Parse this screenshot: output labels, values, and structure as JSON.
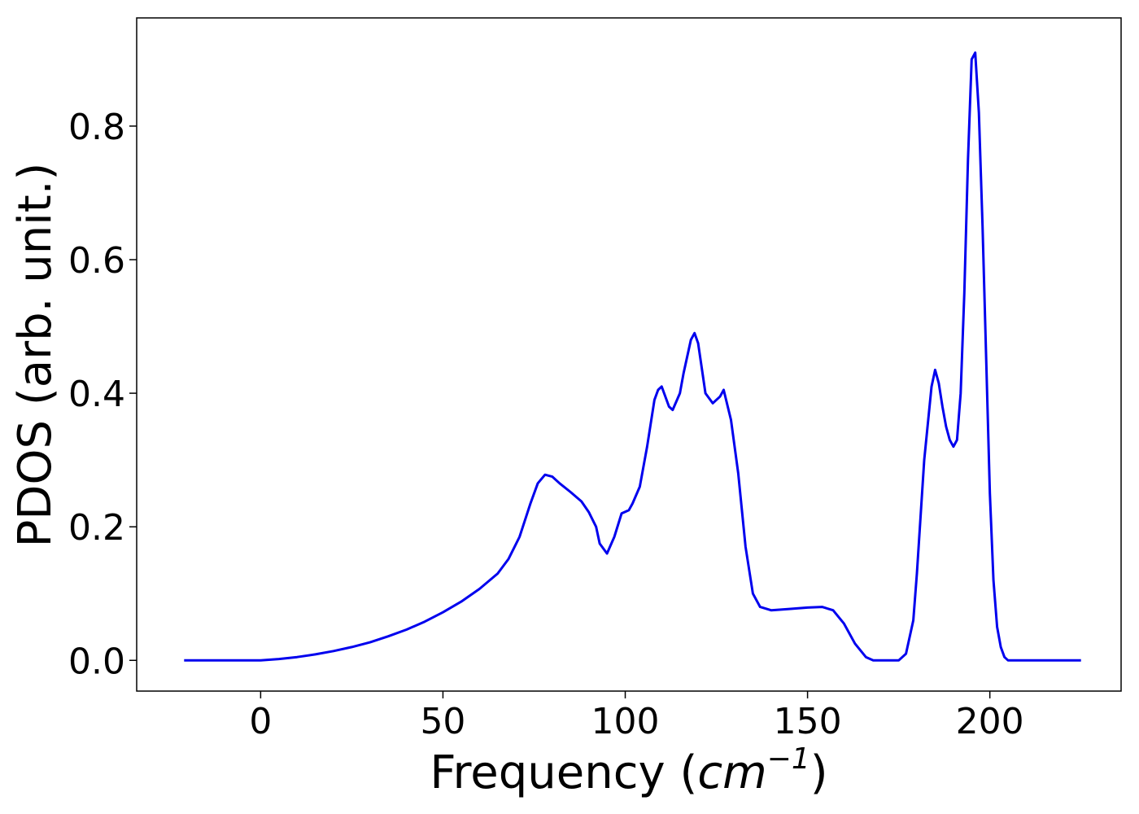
{
  "chart_data": {
    "type": "line",
    "title": "",
    "xlabel": "Frequency (",
    "xlabel_math_base": "cm",
    "xlabel_math_sup": "−1",
    "xlabel_close": ")",
    "ylabel": "PDOS (arb. unit.)",
    "xlim": [
      -34,
      236
    ],
    "ylim": [
      -0.046,
      0.962
    ],
    "xticks": [
      0,
      50,
      100,
      150,
      200
    ],
    "xtick_labels": [
      "0",
      "50",
      "100",
      "150",
      "200"
    ],
    "yticks": [
      0.0,
      0.2,
      0.4,
      0.6,
      0.8
    ],
    "ytick_labels": [
      "0.0",
      "0.2",
      "0.4",
      "0.6",
      "0.8"
    ],
    "grid": false,
    "series": [
      {
        "color": "#0000ee",
        "x": [
          -21,
          0,
          5,
          10,
          15,
          20,
          25,
          30,
          35,
          40,
          45,
          50,
          55,
          60,
          65,
          68,
          71,
          74,
          76,
          78,
          80,
          82,
          85,
          88,
          90,
          92,
          93,
          95,
          97,
          99,
          101,
          102,
          104,
          106,
          108,
          109,
          110,
          112,
          113,
          115,
          116,
          118,
          119,
          120,
          122,
          124,
          126,
          127,
          129,
          131,
          133,
          135,
          137,
          140,
          145,
          150,
          154,
          157,
          160,
          163,
          166,
          168,
          172,
          175,
          177,
          179,
          180,
          182,
          184,
          185,
          186,
          187,
          188,
          189,
          190,
          191,
          192,
          193,
          194,
          195,
          196,
          197,
          198,
          199,
          200,
          201,
          202,
          203,
          204,
          205,
          206,
          207,
          208,
          210,
          225
        ],
        "y": [
          0.0,
          0.0,
          0.002,
          0.005,
          0.009,
          0.014,
          0.02,
          0.027,
          0.036,
          0.046,
          0.058,
          0.072,
          0.088,
          0.107,
          0.13,
          0.152,
          0.185,
          0.235,
          0.265,
          0.278,
          0.275,
          0.265,
          0.252,
          0.238,
          0.222,
          0.2,
          0.175,
          0.16,
          0.185,
          0.22,
          0.225,
          0.235,
          0.26,
          0.32,
          0.39,
          0.405,
          0.41,
          0.38,
          0.375,
          0.4,
          0.43,
          0.48,
          0.49,
          0.475,
          0.4,
          0.385,
          0.395,
          0.405,
          0.36,
          0.28,
          0.17,
          0.1,
          0.08,
          0.075,
          0.077,
          0.079,
          0.08,
          0.075,
          0.055,
          0.025,
          0.005,
          0.0,
          0.0,
          0.0,
          0.01,
          0.06,
          0.13,
          0.3,
          0.41,
          0.435,
          0.415,
          0.38,
          0.35,
          0.33,
          0.32,
          0.33,
          0.4,
          0.55,
          0.75,
          0.9,
          0.91,
          0.82,
          0.65,
          0.45,
          0.25,
          0.12,
          0.05,
          0.02,
          0.005,
          0.0,
          0.0,
          0.0,
          0.0,
          0.0,
          0.0
        ]
      }
    ]
  }
}
